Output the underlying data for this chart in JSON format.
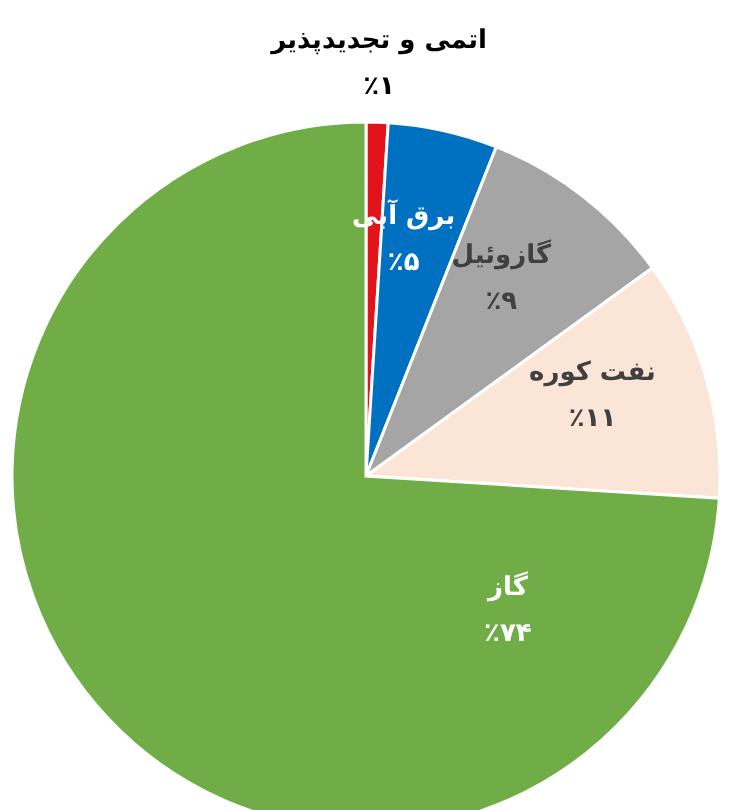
{
  "chart_data": {
    "type": "pie",
    "categories": [
      "اتمی و تجدیدپذیر",
      "برق آبی",
      "گازوئیل",
      "نفت کوره",
      "گاز"
    ],
    "values": [
      1,
      5,
      9,
      11,
      74
    ],
    "colors": [
      "#e3131b",
      "#0070c0",
      "#a5a5a5",
      "#fbe5d6",
      "#70ad47"
    ],
    "value_labels": [
      "٪۱",
      "٪۵",
      "٪۹",
      "٪۱۱",
      "٪۷۴"
    ]
  }
}
